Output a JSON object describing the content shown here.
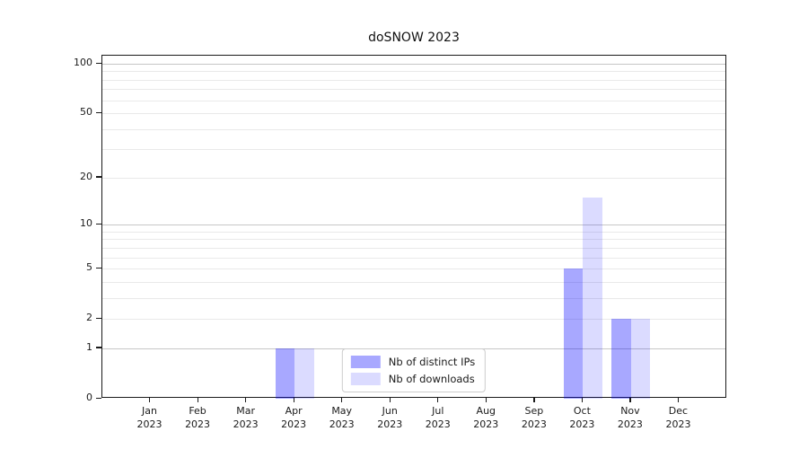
{
  "title": "doSNOW 2023",
  "chart_data": {
    "type": "bar",
    "title": "doSNOW 2023",
    "categories": [
      "Jan",
      "Feb",
      "Mar",
      "Apr",
      "May",
      "Jun",
      "Jul",
      "Aug",
      "Sep",
      "Oct",
      "Nov",
      "Dec"
    ],
    "category_year": "2023",
    "series": [
      {
        "name": "Nb of distinct IPs",
        "color": "#0000ff",
        "alpha": 0.34,
        "values": [
          0,
          0,
          0,
          1,
          0,
          0,
          0,
          0,
          0,
          5,
          2,
          0
        ]
      },
      {
        "name": "Nb of downloads",
        "color": "#0000ff",
        "alpha": 0.14,
        "values": [
          0,
          0,
          0,
          1,
          0,
          0,
          0,
          0,
          0,
          15,
          2,
          0
        ]
      }
    ],
    "xlabel": "",
    "ylabel": "",
    "yscale": "log1p",
    "ylim": [
      0,
      112
    ],
    "ytick_values": [
      0,
      1,
      2,
      5,
      10,
      20,
      50,
      100
    ],
    "major_gridline_values": [
      1,
      10,
      100
    ],
    "minor_gridline_values": [
      2,
      3,
      4,
      5,
      6,
      7,
      8,
      9,
      20,
      30,
      40,
      50,
      60,
      70,
      80,
      90
    ],
    "grid": "on",
    "legend_position": "lower center",
    "colors": {
      "major_gridline": "#c6c6c6",
      "minor_gridline": "#e9e9e9",
      "spine": "#1a1a1a",
      "background": "#ffffff"
    }
  }
}
